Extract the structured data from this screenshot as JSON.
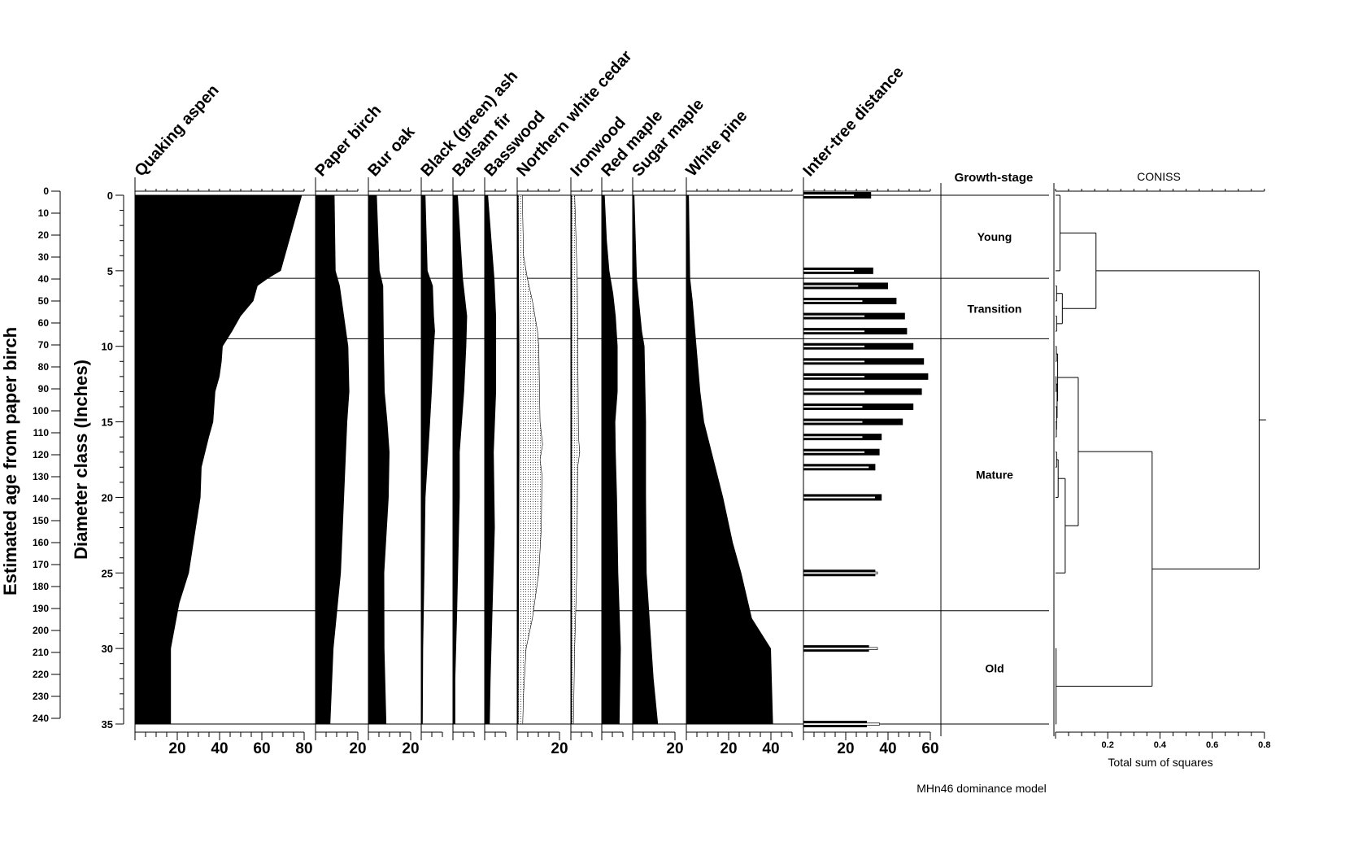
{
  "chart_data": {
    "type": "area",
    "title": "",
    "footer": "MHn46 dominance model",
    "y_axis_left": {
      "label": "Estimated age from paper birch",
      "range": [
        0,
        240
      ],
      "ticks": [
        0,
        10,
        20,
        30,
        40,
        50,
        60,
        70,
        80,
        90,
        100,
        110,
        120,
        130,
        140,
        150,
        160,
        170,
        180,
        190,
        200,
        210,
        220,
        230,
        240
      ]
    },
    "y_axis_diameter": {
      "label": "Diameter class (Inches)",
      "range": [
        0,
        35
      ],
      "ticks": [
        0,
        5,
        10,
        15,
        20,
        25,
        30,
        35
      ]
    },
    "species": [
      {
        "name": "Quaking aspen",
        "axis_max": 80,
        "tick_labels": [
          20,
          40,
          60,
          80
        ],
        "points": [
          [
            0,
            79
          ],
          [
            5,
            69
          ],
          [
            5.5,
            63
          ],
          [
            6,
            58
          ],
          [
            7,
            56
          ],
          [
            8,
            50
          ],
          [
            9,
            46
          ],
          [
            10,
            41.5
          ],
          [
            11,
            41
          ],
          [
            12,
            40
          ],
          [
            13,
            38
          ],
          [
            15,
            37
          ],
          [
            16,
            35
          ],
          [
            18,
            31.5
          ],
          [
            20,
            31
          ],
          [
            25,
            25.5
          ],
          [
            27,
            21
          ],
          [
            30,
            17
          ],
          [
            35,
            17
          ]
        ]
      },
      {
        "name": "Paper birch",
        "axis_max": 20,
        "tick_labels": [
          20
        ],
        "points": [
          [
            0,
            9
          ],
          [
            5,
            9.5
          ],
          [
            6,
            11.5
          ],
          [
            8,
            13.5
          ],
          [
            10,
            15.5
          ],
          [
            13,
            16
          ],
          [
            15,
            15
          ],
          [
            20,
            13.5
          ],
          [
            25,
            12
          ],
          [
            30,
            8.5
          ],
          [
            35,
            7
          ]
        ]
      },
      {
        "name": "Bur oak",
        "axis_max": 20,
        "tick_labels": [
          20
        ],
        "points": [
          [
            0,
            4
          ],
          [
            5,
            5.3
          ],
          [
            6,
            7
          ],
          [
            10,
            7.3
          ],
          [
            13,
            7.7
          ],
          [
            15,
            9
          ],
          [
            17,
            10
          ],
          [
            20,
            9.6
          ],
          [
            25,
            7.5
          ],
          [
            30,
            7.6
          ],
          [
            35,
            8.5
          ]
        ]
      },
      {
        "name": "Black (green) ash",
        "axis_max": 10,
        "tick_labels": [],
        "points": [
          [
            0,
            2
          ],
          [
            5,
            3
          ],
          [
            6,
            5.5
          ],
          [
            8,
            6
          ],
          [
            9,
            6.5
          ],
          [
            10,
            6
          ],
          [
            13,
            5
          ],
          [
            15,
            4.2
          ],
          [
            20,
            2
          ],
          [
            25,
            1.5
          ],
          [
            30,
            0.9
          ],
          [
            35,
            0.7
          ]
        ]
      },
      {
        "name": "Balsam fir",
        "axis_max": 10,
        "tick_labels": [],
        "points": [
          [
            0,
            2.3
          ],
          [
            5.5,
            4.7
          ],
          [
            8,
            6.7
          ],
          [
            10,
            6.3
          ],
          [
            13,
            5.3
          ],
          [
            17,
            3.2
          ],
          [
            20,
            3.2
          ],
          [
            28,
            1.9
          ],
          [
            32,
            1.1
          ],
          [
            35,
            1.1
          ]
        ]
      },
      {
        "name": "Basswood",
        "axis_max": 10,
        "tick_labels": [],
        "points": [
          [
            0,
            1.6
          ],
          [
            5.5,
            4.6
          ],
          [
            8,
            5.4
          ],
          [
            13,
            5.4
          ],
          [
            17,
            4.3
          ],
          [
            22,
            4.8
          ],
          [
            28,
            3.6
          ],
          [
            32,
            2.8
          ],
          [
            35,
            2.4
          ]
        ]
      },
      {
        "name": "Northern white cedar",
        "axis_max": 20,
        "tick_labels": [
          20
        ],
        "points": [
          [
            0,
            0.6
          ],
          [
            10,
            1
          ],
          [
            17,
            1
          ],
          [
            35,
            0.6
          ]
        ],
        "exaggerated": [
          [
            0,
            2.4
          ],
          [
            4,
            3
          ],
          [
            5.5,
            4.8
          ],
          [
            7,
            7.2
          ],
          [
            9,
            9.6
          ],
          [
            10,
            10.2
          ],
          [
            15,
            10.8
          ],
          [
            16.5,
            12
          ],
          [
            17.5,
            10.8
          ],
          [
            18.5,
            11.7
          ],
          [
            22,
            11.4
          ],
          [
            25,
            10.2
          ],
          [
            28,
            7.2
          ],
          [
            30,
            4.2
          ],
          [
            33,
            3
          ],
          [
            35,
            2.6
          ]
        ]
      },
      {
        "name": "Ironwood",
        "axis_max": 10,
        "tick_labels": [],
        "points": [
          [
            0,
            0.5
          ],
          [
            35,
            0.5
          ]
        ],
        "exaggerated": [
          [
            0,
            1.8
          ],
          [
            5.5,
            3
          ],
          [
            16,
            3.6
          ],
          [
            17,
            4.2
          ],
          [
            18,
            3.2
          ],
          [
            25,
            2.8
          ],
          [
            30,
            1.8
          ],
          [
            35,
            1.2
          ]
        ]
      },
      {
        "name": "Red maple",
        "axis_max": 10,
        "tick_labels": [],
        "points": [
          [
            0,
            1.4
          ],
          [
            3,
            2.4
          ],
          [
            5,
            3.6
          ],
          [
            6.5,
            5.4
          ],
          [
            8,
            6.6
          ],
          [
            10,
            7.5
          ],
          [
            13,
            7.5
          ],
          [
            15,
            6.4
          ],
          [
            17,
            6.6
          ],
          [
            20,
            7.2
          ],
          [
            25,
            7.8
          ],
          [
            30,
            9
          ],
          [
            35,
            8.4
          ]
        ]
      },
      {
        "name": "Sugar maple",
        "axis_max": 20,
        "tick_labels": [
          20
        ],
        "points": [
          [
            0,
            0.8
          ],
          [
            5.5,
            2
          ],
          [
            7,
            3
          ],
          [
            9,
            4.4
          ],
          [
            10,
            5.6
          ],
          [
            15,
            6.3
          ],
          [
            20,
            6.3
          ],
          [
            25,
            6.6
          ],
          [
            28,
            8
          ],
          [
            32,
            9.9
          ],
          [
            35,
            12
          ]
        ]
      },
      {
        "name": "White pine",
        "axis_max": 50,
        "tick_labels": [
          20,
          40
        ],
        "points": [
          [
            0,
            1.2
          ],
          [
            5.5,
            1.8
          ],
          [
            7,
            3
          ],
          [
            10,
            4.8
          ],
          [
            13,
            6.6
          ],
          [
            15,
            8.4
          ],
          [
            17,
            12
          ],
          [
            18,
            13.8
          ],
          [
            20,
            17.4
          ],
          [
            23,
            22
          ],
          [
            25,
            26
          ],
          [
            28,
            31
          ],
          [
            30,
            40
          ],
          [
            35,
            41
          ]
        ]
      }
    ],
    "inter_tree_distance": {
      "name": "Inter-tree distance",
      "axis_max": 60,
      "tick_labels": [
        20,
        40,
        60
      ],
      "diameters": [
        0,
        5,
        6,
        7,
        8,
        9,
        10,
        11,
        12,
        13,
        14,
        15,
        16,
        17,
        18,
        20,
        25,
        30,
        35
      ],
      "black": [
        32,
        33,
        40,
        44,
        48,
        49,
        52,
        57,
        59,
        56,
        52,
        47,
        37,
        36,
        34,
        37,
        34,
        31,
        30
      ],
      "white": [
        24,
        24,
        26,
        28,
        29,
        29,
        29,
        29,
        29,
        29,
        28,
        28,
        28,
        29,
        31,
        34,
        35,
        35,
        36
      ]
    },
    "growth_stage": {
      "title": "Growth-stage",
      "boundaries": [
        5.5,
        9.5,
        27.5
      ],
      "zones": [
        {
          "label": "Young",
          "center": 2.75
        },
        {
          "label": "Transition",
          "center": 7.5
        },
        {
          "label": "Mature",
          "center": 18.5
        },
        {
          "label": "Old",
          "center": 31.3
        }
      ]
    },
    "coniss": {
      "title": "CONISS",
      "xlabel": "Total sum of squares",
      "range": [
        0,
        0.8
      ],
      "tick_labels": [
        "0.2",
        "0.4",
        "0.6",
        "0.8"
      ],
      "tree": {
        "h": 0.78,
        "c": [
          {
            "h": 0.155,
            "c": [
              {
                "h": 0.017,
                "c": [
                  0,
                  5
                ]
              },
              {
                "h": 0.026,
                "c": [
                  {
                    "h": 0.004,
                    "c": [
                      6,
                      7
                    ]
                  },
                  {
                    "h": 0.004,
                    "c": [
                      8,
                      9
                    ]
                  }
                ]
              }
            ]
          },
          {
            "h": 0.37,
            "c": [
              {
                "h": 0.087,
                "c": [
                  {
                    "h": 0.008,
                    "c": [
                      {
                        "h": 0.003,
                        "c": [
                          10,
                          11
                        ]
                      },
                      {
                        "h": 0.006,
                        "c": [
                          {
                            "h": 0.002,
                            "c": [
                              12,
                              13
                            ]
                          },
                          {
                            "h": 0.004,
                            "c": [
                              14,
                              {
                                "h": 0.003,
                                "c": [
                                  15,
                                  16
                                ]
                              }
                            ]
                          }
                        ]
                      }
                    ]
                  },
                  {
                    "h": 0.037,
                    "c": [
                      {
                        "h": 0.01,
                        "c": [
                          {
                            "h": 0.004,
                            "c": [
                              17,
                              18
                            ]
                          },
                          20
                        ]
                      },
                      25
                    ]
                  }
                ]
              },
              {
                "h": 0.002,
                "c": [
                  30,
                  35
                ]
              }
            ]
          }
        ]
      }
    }
  }
}
